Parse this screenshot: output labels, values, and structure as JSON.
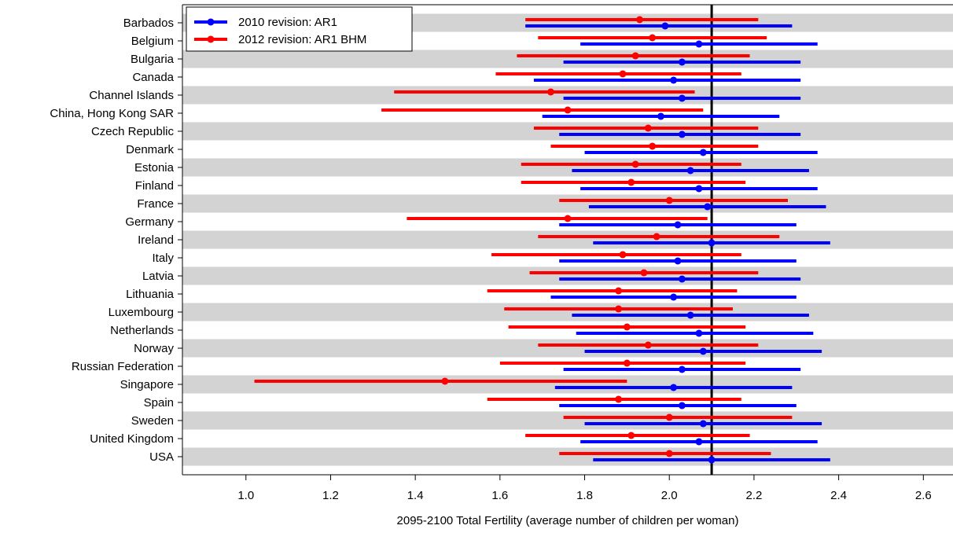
{
  "chart_data": {
    "type": "interval",
    "title": "",
    "xlabel": "2095-2100 Total Fertility (average number of children per woman)",
    "ylabel": "",
    "xlim": [
      0.85,
      2.67
    ],
    "xticks": [
      1.0,
      1.2,
      1.4,
      1.6,
      1.8,
      2.0,
      2.2,
      2.4,
      2.6
    ],
    "xtick_labels": [
      "1.0",
      "1.2",
      "1.4",
      "1.6",
      "1.8",
      "2.0",
      "2.2",
      "2.4",
      "2.6"
    ],
    "reference_line": 2.1,
    "legend_position": "top-left",
    "row_shading": "alternating gray/white",
    "categories": [
      "Barbados",
      "Belgium",
      "Bulgaria",
      "Canada",
      "Channel Islands",
      "China, Hong Kong SAR",
      "Czech Republic",
      "Denmark",
      "Estonia",
      "Finland",
      "France",
      "Germany",
      "Ireland",
      "Italy",
      "Latvia",
      "Lithuania",
      "Luxembourg",
      "Netherlands",
      "Norway",
      "Russian Federation",
      "Singapore",
      "Spain",
      "Sweden",
      "United Kingdom",
      "USA"
    ],
    "series": [
      {
        "name": "2010 revision: AR1",
        "color": "#0000ff",
        "median": [
          1.99,
          2.07,
          2.03,
          2.01,
          2.03,
          1.98,
          2.03,
          2.08,
          2.05,
          2.07,
          2.09,
          2.02,
          2.1,
          2.02,
          2.03,
          2.01,
          2.05,
          2.07,
          2.08,
          2.03,
          2.01,
          2.03,
          2.08,
          2.07,
          2.1
        ],
        "lower": [
          1.66,
          1.79,
          1.75,
          1.68,
          1.75,
          1.7,
          1.74,
          1.8,
          1.77,
          1.79,
          1.81,
          1.74,
          1.82,
          1.74,
          1.74,
          1.72,
          1.77,
          1.78,
          1.8,
          1.75,
          1.73,
          1.74,
          1.8,
          1.79,
          1.82
        ],
        "upper": [
          2.29,
          2.35,
          2.31,
          2.31,
          2.31,
          2.26,
          2.31,
          2.35,
          2.33,
          2.35,
          2.37,
          2.3,
          2.38,
          2.3,
          2.31,
          2.3,
          2.33,
          2.34,
          2.36,
          2.31,
          2.29,
          2.3,
          2.36,
          2.35,
          2.38
        ]
      },
      {
        "name": "2012 revision: AR1 BHM",
        "color": "#ff0000",
        "median": [
          1.93,
          1.96,
          1.92,
          1.89,
          1.72,
          1.76,
          1.95,
          1.96,
          1.92,
          1.91,
          2.0,
          1.76,
          1.97,
          1.89,
          1.94,
          1.88,
          1.88,
          1.9,
          1.95,
          1.9,
          1.47,
          1.88,
          2.0,
          1.91,
          2.0
        ],
        "lower": [
          1.66,
          1.69,
          1.64,
          1.59,
          1.35,
          1.32,
          1.68,
          1.72,
          1.65,
          1.65,
          1.74,
          1.38,
          1.69,
          1.58,
          1.67,
          1.57,
          1.61,
          1.62,
          1.69,
          1.6,
          1.02,
          1.57,
          1.75,
          1.66,
          1.74
        ],
        "upper": [
          2.21,
          2.23,
          2.19,
          2.17,
          2.06,
          2.08,
          2.21,
          2.21,
          2.17,
          2.18,
          2.28,
          2.09,
          2.26,
          2.17,
          2.21,
          2.16,
          2.15,
          2.18,
          2.21,
          2.18,
          1.9,
          2.17,
          2.29,
          2.19,
          2.24
        ]
      }
    ]
  }
}
